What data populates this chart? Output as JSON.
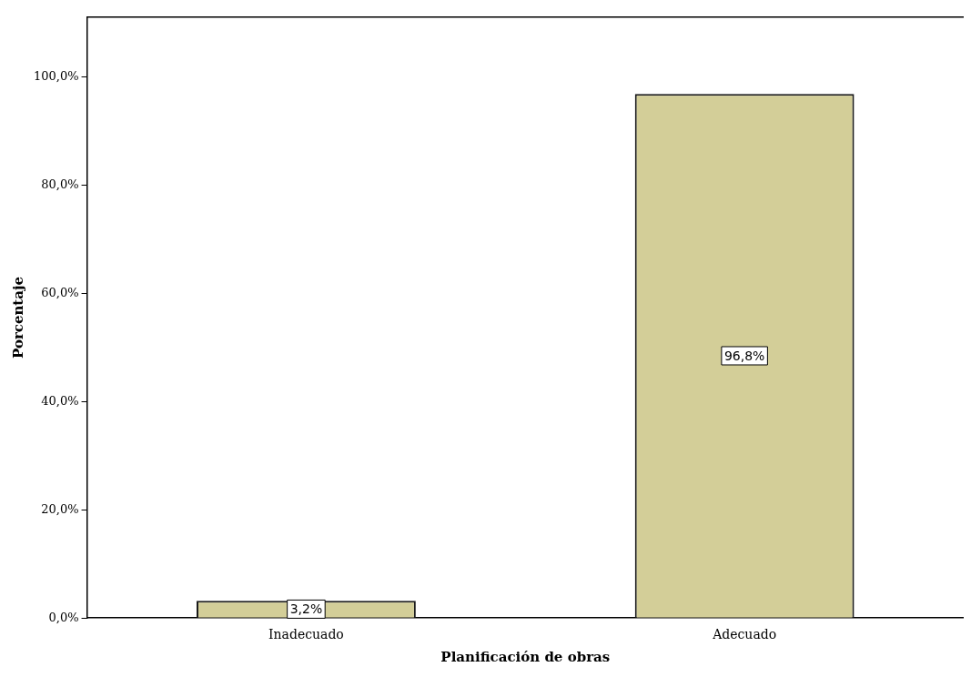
{
  "chart_data": {
    "type": "bar",
    "xlabel": "Planificación de obras",
    "ylabel": "Porcentaje",
    "categories": [
      "Inadecuado",
      "Adecuado"
    ],
    "values": [
      3.2,
      96.8
    ],
    "value_labels": [
      "3,2%",
      "96,8%"
    ],
    "color": "#d3ce98",
    "ylim": [
      0,
      111
    ],
    "yticks": [
      {
        "value": 0,
        "label": "0,0%"
      },
      {
        "value": 20,
        "label": "20,0%"
      },
      {
        "value": 40,
        "label": "40,0%"
      },
      {
        "value": 60,
        "label": "60,0%"
      },
      {
        "value": 80,
        "label": "80,0%"
      },
      {
        "value": 100,
        "label": "100,0%"
      }
    ],
    "grid": false,
    "legend": false
  }
}
